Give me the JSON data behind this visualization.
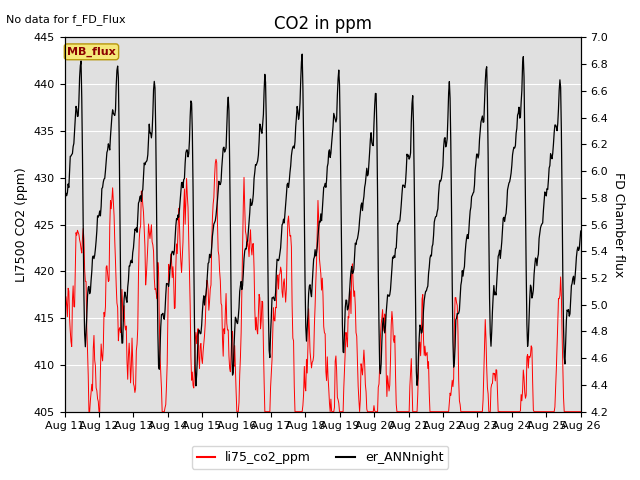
{
  "title": "CO2 in ppm",
  "top_left_text": "No data for f_FD_Flux",
  "ylabel_left": "LI7500 CO2 (ppm)",
  "ylabel_right": "FD Chamber flux",
  "ylim_left": [
    405,
    445
  ],
  "ylim_right": [
    4.2,
    7.0
  ],
  "xtick_labels": [
    "Aug 11",
    "Aug 12",
    "Aug 13",
    "Aug 14",
    "Aug 15",
    "Aug 16",
    "Aug 17",
    "Aug 18",
    "Aug 19",
    "Aug 20",
    "Aug 21",
    "Aug 22",
    "Aug 23",
    "Aug 24",
    "Aug 25",
    "Aug 26"
  ],
  "legend_labels": [
    "li75_co2_ppm",
    "er_ANNnight"
  ],
  "line_red_color": "red",
  "line_black_color": "black",
  "mb_flux_label": "MB_flux",
  "bg_color": "#e0e0e0",
  "title_fontsize": 12,
  "axis_fontsize": 9,
  "tick_fontsize": 8
}
